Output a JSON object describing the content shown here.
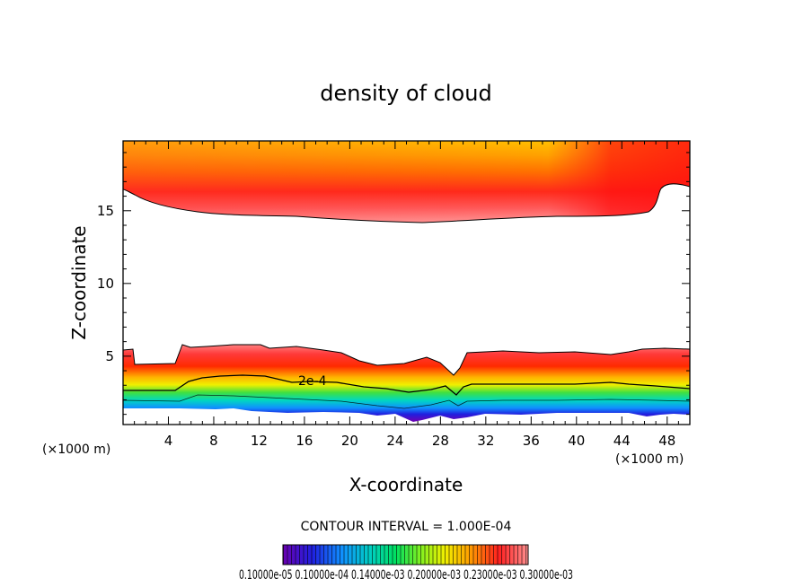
{
  "chart_data": {
    "type": "heatmap",
    "title": "density of cloud",
    "xlabel": "X-coordinate",
    "ylabel": "Z-coordinate",
    "x_unit": "(×1000 m)",
    "x_unit_right": "(×1000 m)",
    "xlim": [
      0,
      50
    ],
    "ylim": [
      0.3,
      19.8
    ],
    "xticks": [
      4,
      8,
      12,
      16,
      20,
      24,
      28,
      32,
      36,
      40,
      44,
      48
    ],
    "xtick_labels": [
      "4",
      "8",
      "12",
      "16",
      "20",
      "24",
      "28",
      "32",
      "36",
      "40",
      "44",
      "48"
    ],
    "yticks": [
      5,
      10,
      15
    ],
    "ytick_labels": [
      "5",
      "10",
      "15"
    ],
    "contour_interval_text": "CONTOUR INTERVAL = 1.000E-04",
    "contour_label": "2e-4",
    "colorbar_text": "0.10000e-05 0.10000e-04 0.14000e-03 0.20000e-03 0.23000e-03 0.30000e-03",
    "colorbar_colors": [
      "#6a00b0",
      "#2020e0",
      "#1090ff",
      "#00d0c0",
      "#00e060",
      "#80f020",
      "#f0f000",
      "#ffa000",
      "#ff2020",
      "#ff9090"
    ],
    "colors": {
      "upper_top": "#ffc000",
      "upper_mid": "#ff7800",
      "upper_edge": "#ff1818",
      "upper_fade": "#ff8a8a",
      "lower_top": "#ff6b6b",
      "lower_red": "#ff2a10",
      "lower_orange": "#ffb000",
      "lower_yellow": "#f0f000",
      "lower_green": "#20e040",
      "lower_cyan": "#00d8d8",
      "lower_blue": "#2040ff",
      "lower_violet": "#7000b0"
    }
  }
}
